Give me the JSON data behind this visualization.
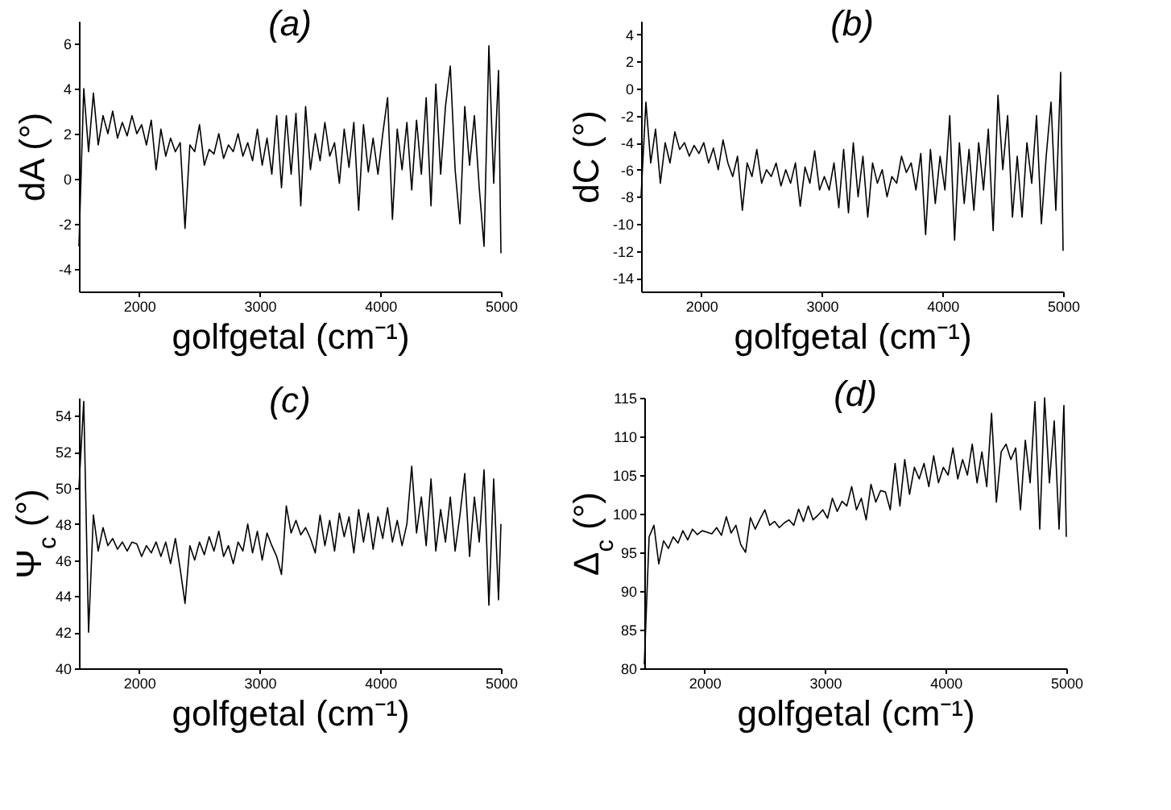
{
  "chart_data": [
    {
      "type": "line",
      "title": "(a)",
      "xlabel": "golfgetal (cm⁻¹)",
      "ylabel": "dA (°)",
      "xlim": [
        1500,
        5000
      ],
      "xticks": [
        2000,
        3000,
        4000,
        5000
      ],
      "ylim": [
        -5,
        7
      ],
      "yticks": [
        -4,
        -2,
        0,
        2,
        4,
        6
      ],
      "x": [
        1500,
        1540,
        1580,
        1620,
        1660,
        1700,
        1740,
        1780,
        1820,
        1860,
        1900,
        1940,
        1980,
        2020,
        2060,
        2100,
        2140,
        2180,
        2220,
        2260,
        2300,
        2340,
        2380,
        2420,
        2460,
        2500,
        2540,
        2580,
        2620,
        2660,
        2700,
        2740,
        2780,
        2820,
        2860,
        2900,
        2940,
        2980,
        3020,
        3060,
        3100,
        3140,
        3180,
        3220,
        3260,
        3300,
        3340,
        3380,
        3420,
        3460,
        3500,
        3540,
        3580,
        3620,
        3660,
        3700,
        3740,
        3780,
        3820,
        3860,
        3900,
        3940,
        3980,
        4020,
        4060,
        4100,
        4140,
        4180,
        4220,
        4260,
        4300,
        4340,
        4380,
        4420,
        4460,
        4500,
        4540,
        4580,
        4620,
        4660,
        4700,
        4740,
        4780,
        4820,
        4860,
        4900,
        4940,
        4980,
        5000
      ],
      "series": [
        {
          "color": "#000000",
          "values": [
            -3,
            4,
            1.2,
            3.8,
            1.5,
            2.8,
            2,
            3,
            1.8,
            2.5,
            1.9,
            2.8,
            2,
            2.4,
            1.5,
            2.6,
            0.4,
            2.2,
            1,
            1.8,
            1.2,
            1.6,
            -2.2,
            1.5,
            1.2,
            2.4,
            0.6,
            1.3,
            1.1,
            2,
            0.9,
            1.5,
            1.2,
            2,
            1,
            1.6,
            0.8,
            2.2,
            0.6,
            1.8,
            0.2,
            2.8,
            -0.4,
            2.8,
            0.2,
            2.9,
            -1.2,
            3.2,
            0.4,
            2,
            0.8,
            2.5,
            1,
            1.6,
            -0.2,
            2.2,
            0.5,
            2.5,
            -1.4,
            2.4,
            0.3,
            1.8,
            0.2,
            2,
            3.6,
            -1.8,
            2.2,
            0.4,
            2.5,
            -0.5,
            2.6,
            0.2,
            3.6,
            -1.2,
            4.2,
            0.2,
            3.2,
            5,
            0.4,
            -2,
            3.2,
            0.6,
            2.8,
            -0.4,
            -3,
            5.9,
            -0.2,
            4.8,
            -3.3
          ]
        }
      ]
    },
    {
      "type": "line",
      "title": "(b)",
      "xlabel": "golfgetal (cm⁻¹)",
      "ylabel": "dC (°)",
      "xlim": [
        1500,
        5000
      ],
      "xticks": [
        2000,
        3000,
        4000,
        5000
      ],
      "ylim": [
        -15,
        5
      ],
      "yticks": [
        -14,
        -12,
        -10,
        -8,
        -6,
        -4,
        -2,
        0,
        2,
        4
      ],
      "x": [
        1500,
        1540,
        1580,
        1620,
        1660,
        1700,
        1740,
        1780,
        1820,
        1860,
        1900,
        1940,
        1980,
        2020,
        2060,
        2100,
        2140,
        2180,
        2220,
        2260,
        2300,
        2340,
        2380,
        2420,
        2460,
        2500,
        2540,
        2580,
        2620,
        2660,
        2700,
        2740,
        2780,
        2820,
        2860,
        2900,
        2940,
        2980,
        3020,
        3060,
        3100,
        3140,
        3180,
        3220,
        3260,
        3300,
        3340,
        3380,
        3420,
        3460,
        3500,
        3540,
        3580,
        3620,
        3660,
        3700,
        3740,
        3780,
        3820,
        3860,
        3900,
        3940,
        3980,
        4020,
        4060,
        4100,
        4140,
        4180,
        4220,
        4260,
        4300,
        4340,
        4380,
        4420,
        4460,
        4500,
        4540,
        4580,
        4620,
        4660,
        4700,
        4740,
        4780,
        4820,
        4860,
        4900,
        4940,
        4980,
        5000
      ],
      "series": [
        {
          "color": "#000000",
          "values": [
            -8,
            -1,
            -5.5,
            -3,
            -7,
            -4,
            -5.5,
            -3.2,
            -4.5,
            -4,
            -5,
            -4.2,
            -4.8,
            -4,
            -5.5,
            -4.4,
            -6,
            -3.8,
            -5.5,
            -6.5,
            -5,
            -9,
            -5.5,
            -6.5,
            -4.5,
            -7,
            -6,
            -6.5,
            -5.5,
            -7.2,
            -6,
            -7,
            -5.5,
            -8.7,
            -5.8,
            -7,
            -4.6,
            -7.5,
            -6.5,
            -7.5,
            -5.5,
            -8.8,
            -4.5,
            -9.2,
            -4,
            -8,
            -5,
            -9.5,
            -5.5,
            -7,
            -6,
            -8,
            -6.5,
            -7,
            -5,
            -6.2,
            -5.5,
            -7.5,
            -4.8,
            -10.8,
            -4.5,
            -8.5,
            -5,
            -7.5,
            -2,
            -11.2,
            -4,
            -8.5,
            -4.5,
            -9,
            -4,
            -7.5,
            -3,
            -10.5,
            -0.5,
            -6,
            -2,
            -9.5,
            -5,
            -9.5,
            -4,
            -7,
            -2,
            -10,
            -5,
            -1,
            -9,
            1.2,
            -12
          ]
        }
      ]
    },
    {
      "type": "line",
      "title": "(c)",
      "xlabel": "golfgetal (cm⁻¹)",
      "ylabel": "Ψ$_{c}$ (°)",
      "xlim": [
        1500,
        5000
      ],
      "xticks": [
        2000,
        3000,
        4000,
        5000
      ],
      "ylim": [
        40,
        55
      ],
      "yticks": [
        40,
        42,
        44,
        46,
        48,
        50,
        52,
        54
      ],
      "x": [
        1500,
        1540,
        1580,
        1620,
        1660,
        1700,
        1740,
        1780,
        1820,
        1860,
        1900,
        1940,
        1980,
        2020,
        2060,
        2100,
        2140,
        2180,
        2220,
        2260,
        2300,
        2340,
        2380,
        2420,
        2460,
        2500,
        2540,
        2580,
        2620,
        2660,
        2700,
        2740,
        2780,
        2820,
        2860,
        2900,
        2940,
        2980,
        3020,
        3060,
        3100,
        3140,
        3180,
        3220,
        3260,
        3300,
        3340,
        3380,
        3420,
        3460,
        3500,
        3540,
        3580,
        3620,
        3660,
        3700,
        3740,
        3780,
        3820,
        3860,
        3900,
        3940,
        3980,
        4020,
        4060,
        4100,
        4140,
        4180,
        4220,
        4260,
        4300,
        4340,
        4380,
        4420,
        4460,
        4500,
        4540,
        4580,
        4620,
        4660,
        4700,
        4740,
        4780,
        4820,
        4860,
        4900,
        4940,
        4980,
        5000
      ],
      "series": [
        {
          "color": "#000000",
          "values": [
            50,
            54.8,
            42,
            48.5,
            46.5,
            47.8,
            46.8,
            47.2,
            46.6,
            47,
            46.5,
            47,
            46.9,
            46.2,
            46.8,
            46.4,
            47,
            46.2,
            47,
            45.8,
            47.2,
            45.5,
            43.6,
            46.8,
            46,
            47,
            46.3,
            47.3,
            46.5,
            47.6,
            46.2,
            46.8,
            45.8,
            47,
            46.5,
            48,
            46.4,
            47.6,
            46,
            47.5,
            46.8,
            46.2,
            45.2,
            49,
            47.5,
            48.2,
            47.4,
            47.8,
            47.2,
            46.4,
            48.5,
            46.8,
            48.2,
            46.5,
            48.6,
            47.3,
            48.4,
            46.4,
            48.8,
            47,
            48.6,
            46.6,
            48.4,
            47.2,
            48.9,
            47,
            48.2,
            46.8,
            48,
            51.2,
            47.5,
            49.5,
            46.8,
            50.5,
            46.5,
            48.8,
            47,
            49.5,
            46.5,
            48.5,
            50.8,
            46.2,
            49.5,
            47,
            51,
            43.5,
            50.5,
            43.8,
            48
          ]
        }
      ]
    },
    {
      "type": "line",
      "title": "(d)",
      "xlabel": "golfgetal (cm⁻¹)",
      "ylabel": "Δ$_{c}$ (°)",
      "xlim": [
        1500,
        5000
      ],
      "xticks": [
        2000,
        3000,
        4000,
        5000
      ],
      "ylim": [
        80,
        115
      ],
      "yticks": [
        80,
        85,
        90,
        95,
        100,
        105,
        110,
        115
      ],
      "x": [
        1500,
        1540,
        1580,
        1620,
        1660,
        1700,
        1740,
        1780,
        1820,
        1860,
        1900,
        1940,
        1980,
        2020,
        2060,
        2100,
        2140,
        2180,
        2220,
        2260,
        2300,
        2340,
        2380,
        2420,
        2460,
        2500,
        2540,
        2580,
        2620,
        2660,
        2700,
        2740,
        2780,
        2820,
        2860,
        2900,
        2940,
        2980,
        3020,
        3060,
        3100,
        3140,
        3180,
        3220,
        3260,
        3300,
        3340,
        3380,
        3420,
        3460,
        3500,
        3540,
        3580,
        3620,
        3660,
        3700,
        3740,
        3780,
        3820,
        3860,
        3900,
        3940,
        3980,
        4020,
        4060,
        4100,
        4140,
        4180,
        4220,
        4260,
        4300,
        4340,
        4380,
        4420,
        4460,
        4500,
        4540,
        4580,
        4620,
        4660,
        4700,
        4740,
        4780,
        4820,
        4860,
        4900,
        4940,
        4980,
        5000
      ],
      "series": [
        {
          "color": "#000000",
          "values": [
            80.5,
            97,
            98.5,
            93.5,
            96.5,
            95.5,
            97,
            96.2,
            97.8,
            96.6,
            98,
            97.3,
            97.8,
            97.6,
            97.4,
            98.2,
            97.2,
            99.6,
            97.5,
            98.5,
            96,
            95,
            99.5,
            98,
            99.3,
            100.5,
            98.5,
            99,
            98.2,
            98.8,
            99.2,
            98.5,
            100.6,
            99,
            101,
            99.2,
            99.8,
            100.5,
            99.4,
            102,
            100.3,
            101.6,
            101,
            103.5,
            100.5,
            102,
            99.2,
            103.8,
            101.5,
            103,
            102.8,
            100.5,
            106.5,
            101,
            107,
            102.5,
            106,
            104.5,
            106.5,
            103.5,
            107.5,
            104,
            106,
            105,
            108.5,
            104.5,
            107,
            105,
            109,
            104,
            108,
            103.5,
            113,
            101.5,
            108,
            109,
            107,
            108.5,
            100.5,
            109.5,
            104,
            114.5,
            98,
            115,
            104,
            112,
            98,
            114,
            97
          ]
        }
      ]
    }
  ]
}
